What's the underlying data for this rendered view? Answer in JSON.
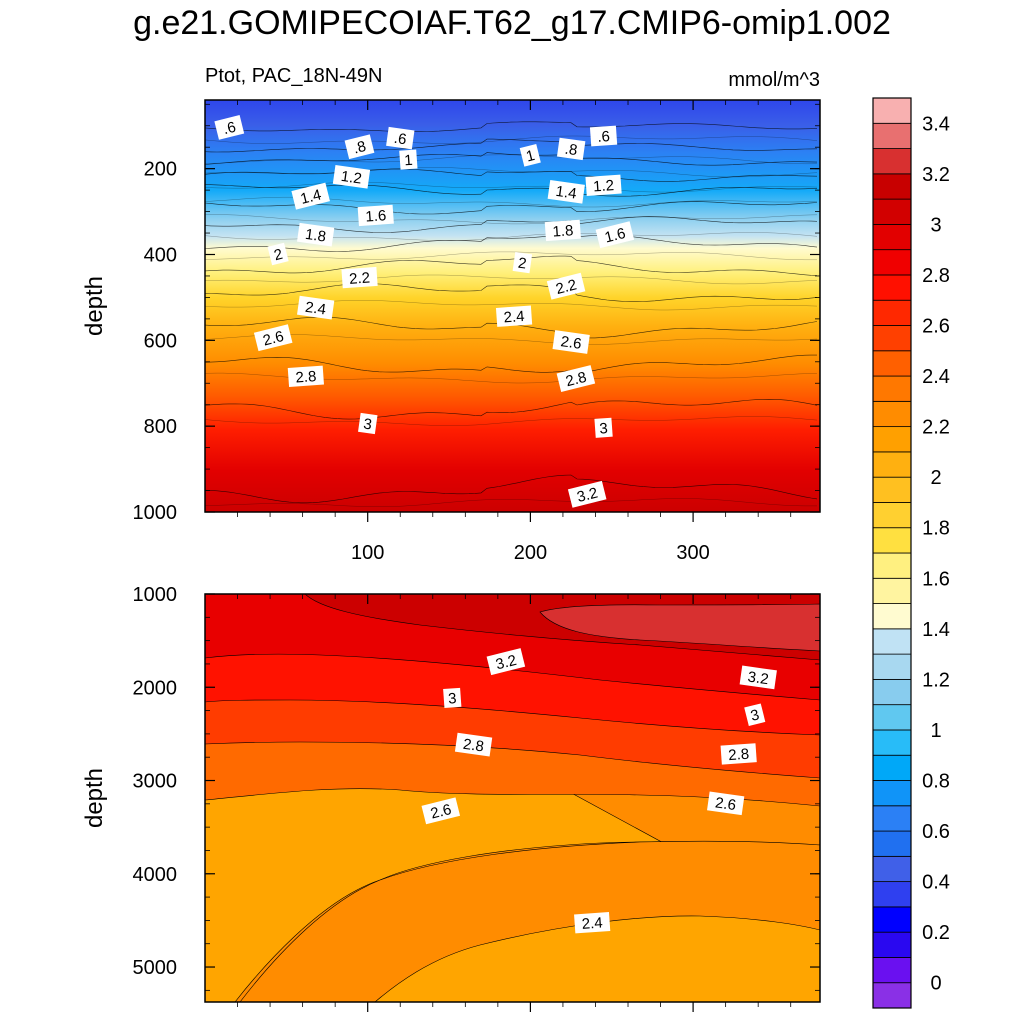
{
  "title": "g.e21.GOMIPECOIAF.T62_g17.CMIP6-omip1.002",
  "chart_data": [
    {
      "type": "heatmap",
      "subtitle_left": "Ptot, PAC_18N-49N",
      "subtitle_right": "mmol/m^3",
      "ylabel": "depth",
      "xlim": [
        0,
        378
      ],
      "ylim": [
        1000,
        40
      ],
      "xticks": [
        100,
        200,
        300
      ],
      "xtick_labels": [
        "100",
        "200",
        "300"
      ],
      "yticks": [
        200,
        400,
        600,
        800,
        1000
      ],
      "ytick_labels": [
        "200",
        "400",
        "600",
        "800",
        "1000"
      ],
      "contour_depths": [
        {
          "level": 0.6,
          "depth": 105
        },
        {
          "level": 0.8,
          "depth": 150
        },
        {
          "level": 1.0,
          "depth": 180
        },
        {
          "level": 1.2,
          "depth": 215
        },
        {
          "level": 1.4,
          "depth": 250
        },
        {
          "level": 1.6,
          "depth": 290
        },
        {
          "level": 1.8,
          "depth": 330
        },
        {
          "level": 2.0,
          "depth": 375
        },
        {
          "level": 2.2,
          "depth": 430
        },
        {
          "level": 2.4,
          "depth": 490
        },
        {
          "level": 2.6,
          "depth": 570
        },
        {
          "level": 2.8,
          "depth": 660
        },
        {
          "level": 3.0,
          "depth": 760
        },
        {
          "level": 3.2,
          "depth": 950
        }
      ],
      "contour_labels": [
        {
          "text": ".6",
          "x": 15,
          "depth": 105
        },
        {
          "text": ".6",
          "x": 120,
          "depth": 130
        },
        {
          "text": ".6",
          "x": 245,
          "depth": 125
        },
        {
          "text": ".8",
          "x": 95,
          "depth": 150
        },
        {
          "text": ".8",
          "x": 225,
          "depth": 155
        },
        {
          "text": "1",
          "x": 125,
          "depth": 180
        },
        {
          "text": "1",
          "x": 200,
          "depth": 170
        },
        {
          "text": "1.2",
          "x": 90,
          "depth": 220
        },
        {
          "text": "1.2",
          "x": 245,
          "depth": 240
        },
        {
          "text": "1.4",
          "x": 65,
          "depth": 265
        },
        {
          "text": "1.4",
          "x": 222,
          "depth": 255
        },
        {
          "text": "1.6",
          "x": 105,
          "depth": 310
        },
        {
          "text": "1.6",
          "x": 252,
          "depth": 355
        },
        {
          "text": "1.8",
          "x": 68,
          "depth": 355
        },
        {
          "text": "1.8",
          "x": 220,
          "depth": 345
        },
        {
          "text": "2",
          "x": 45,
          "depth": 400
        },
        {
          "text": "2",
          "x": 195,
          "depth": 420
        },
        {
          "text": "2.2",
          "x": 95,
          "depth": 455
        },
        {
          "text": "2.2",
          "x": 222,
          "depth": 475
        },
        {
          "text": "2.4",
          "x": 68,
          "depth": 525
        },
        {
          "text": "2.4",
          "x": 190,
          "depth": 545
        },
        {
          "text": "2.6",
          "x": 42,
          "depth": 595
        },
        {
          "text": "2.6",
          "x": 225,
          "depth": 605
        },
        {
          "text": "2.8",
          "x": 62,
          "depth": 685
        },
        {
          "text": "2.8",
          "x": 228,
          "depth": 690
        },
        {
          "text": "3",
          "x": 100,
          "depth": 795
        },
        {
          "text": "3",
          "x": 245,
          "depth": 805
        },
        {
          "text": "3.2",
          "x": 235,
          "depth": 960
        }
      ]
    },
    {
      "type": "heatmap",
      "ylabel": "depth",
      "xlim": [
        0,
        378
      ],
      "ylim": [
        5375,
        1000
      ],
      "yticks": [
        1000,
        2000,
        3000,
        4000,
        5000
      ],
      "ytick_labels": [
        "1000",
        "2000",
        "3000",
        "4000",
        "5000"
      ],
      "contour_labels": [
        {
          "text": "3.2",
          "x": 185,
          "depth": 1730
        },
        {
          "text": "3.2",
          "x": 340,
          "depth": 1900
        },
        {
          "text": "3",
          "x": 152,
          "depth": 2120
        },
        {
          "text": "3",
          "x": 338,
          "depth": 2300
        },
        {
          "text": "2.8",
          "x": 165,
          "depth": 2620
        },
        {
          "text": "2.8",
          "x": 328,
          "depth": 2720
        },
        {
          "text": "2.6",
          "x": 145,
          "depth": 3330
        },
        {
          "text": "2.6",
          "x": 320,
          "depth": 3250
        },
        {
          "text": "2.4",
          "x": 238,
          "depth": 4530
        }
      ]
    }
  ],
  "colorbar": {
    "labels": [
      "3.4",
      "3.2",
      "3",
      "2.8",
      "2.6",
      "2.4",
      "2.2",
      "2",
      "1.8",
      "1.6",
      "1.4",
      "1.2",
      "1",
      "0.8",
      "0.6",
      "0.4",
      "0.2",
      "0"
    ],
    "colors": [
      "#8a30e6",
      "#6a10f0",
      "#2a08f0",
      "#0000ff",
      "#2f40f0",
      "#4060e8",
      "#2070f0",
      "#2b80f5",
      "#1094f8",
      "#00a8f8",
      "#28bcf8",
      "#60c8f0",
      "#88ccee",
      "#a8d8f0",
      "#c0e2f4",
      "#fffbd0",
      "#fff4a0",
      "#fff080",
      "#ffe040",
      "#ffd030",
      "#ffc020",
      "#ffb010",
      "#ffa000",
      "#ff8c00",
      "#ff7800",
      "#ff6000",
      "#ff4000",
      "#ff2800",
      "#ff1000",
      "#f00000",
      "#e20000",
      "#d20000",
      "#c80000",
      "#d83030",
      "#e87070",
      "#f8b0b0"
    ]
  }
}
